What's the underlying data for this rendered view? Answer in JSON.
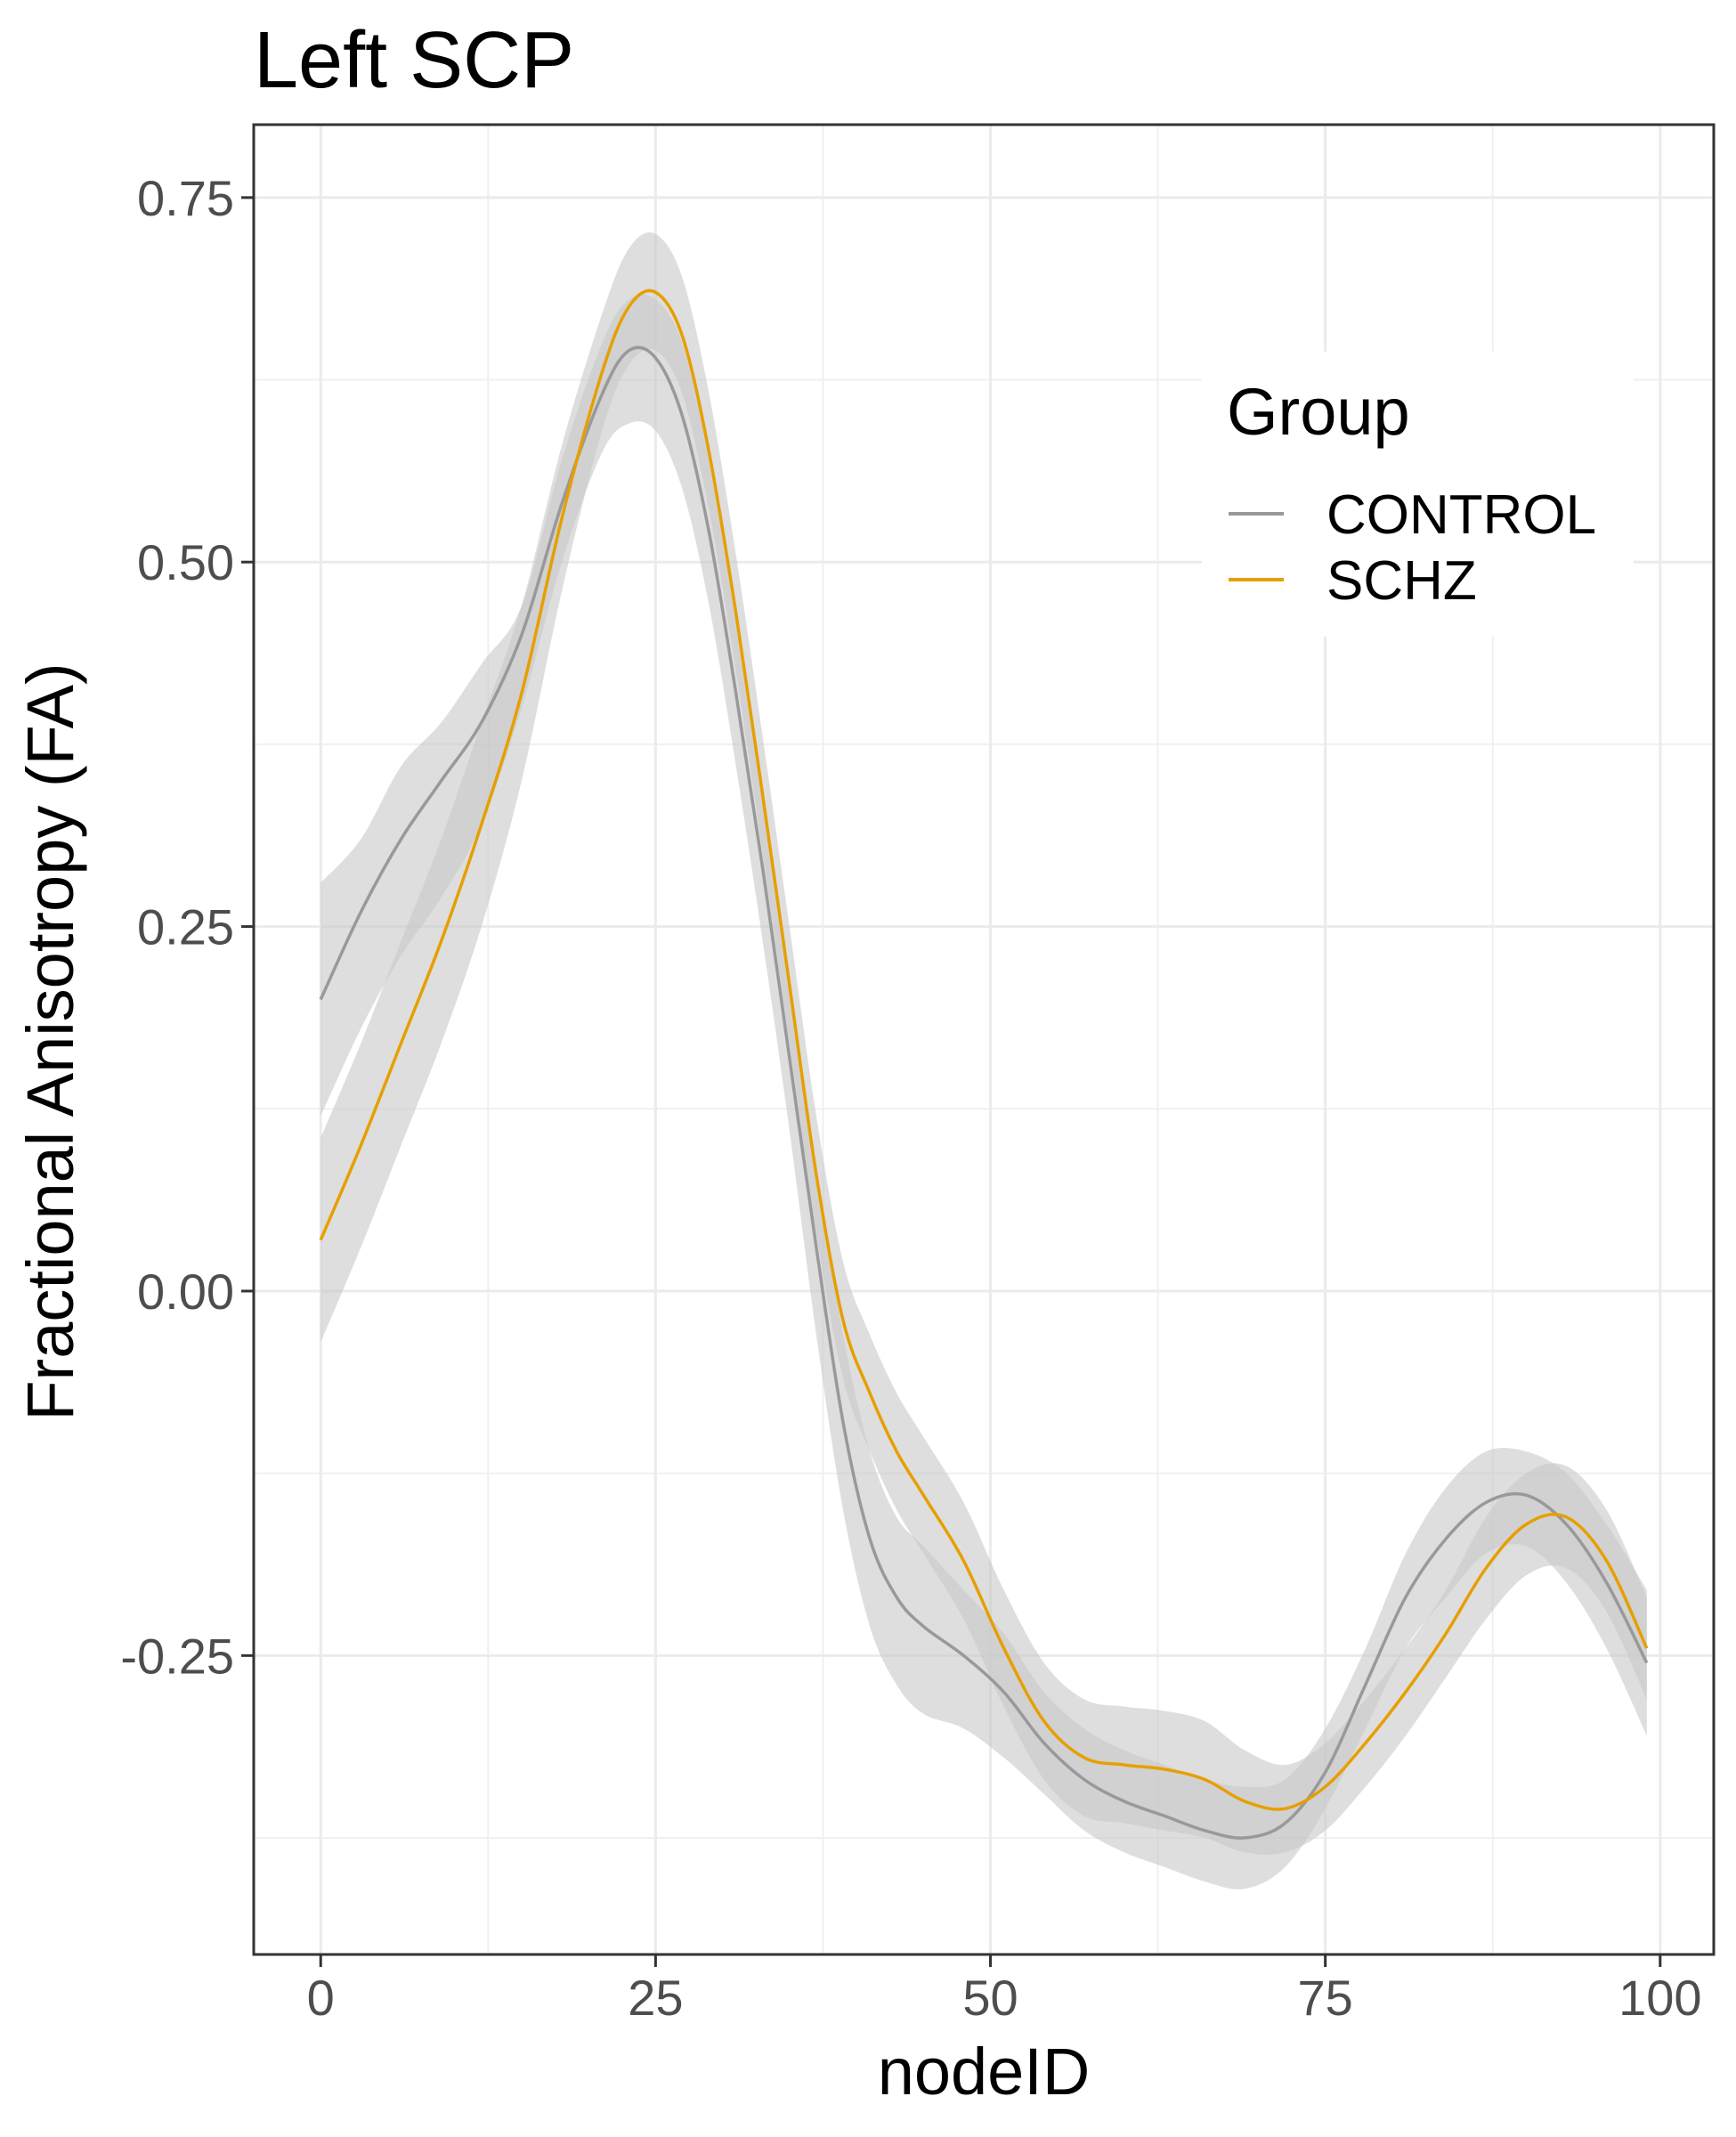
{
  "chart_data": {
    "type": "line",
    "title": "Left SCP",
    "xlabel": "nodeID",
    "ylabel": "Fractional Anisotropy (FA)",
    "xlim": [
      -5,
      104
    ],
    "ylim": [
      -0.455,
      0.8
    ],
    "x_ticks": [
      0,
      25,
      50,
      75,
      100
    ],
    "x_tick_labels": [
      "0",
      "25",
      "50",
      "75",
      "100"
    ],
    "y_ticks": [
      -0.25,
      0.0,
      0.25,
      0.5,
      0.75
    ],
    "y_tick_labels": [
      "-0.25",
      "0.00",
      "0.25",
      "0.50",
      "0.75"
    ],
    "grid": true,
    "legend": {
      "title": "Group",
      "position": "top-right"
    },
    "band_color": "#c8c8c8",
    "series": [
      {
        "name": "CONTROL",
        "color": "#999999",
        "x": [
          0,
          3,
          6,
          9,
          12,
          15,
          18,
          21,
          23,
          25,
          27,
          29,
          31,
          33,
          35,
          37,
          39,
          41,
          43,
          45,
          48,
          51,
          54,
          57,
          60,
          63,
          66,
          69,
          72,
          75,
          78,
          81,
          84,
          87,
          90,
          93,
          96,
          99
        ],
        "y": [
          0.2,
          0.26,
          0.31,
          0.35,
          0.39,
          0.45,
          0.54,
          0.615,
          0.645,
          0.64,
          0.6,
          0.52,
          0.41,
          0.29,
          0.16,
          0.03,
          -0.09,
          -0.17,
          -0.21,
          -0.23,
          -0.25,
          -0.275,
          -0.31,
          -0.335,
          -0.35,
          -0.36,
          -0.37,
          -0.375,
          -0.365,
          -0.33,
          -0.27,
          -0.21,
          -0.17,
          -0.145,
          -0.14,
          -0.16,
          -0.2,
          -0.255
        ],
        "lower": [
          0.12,
          0.18,
          0.23,
          0.27,
          0.32,
          0.4,
          0.5,
          0.575,
          0.595,
          0.59,
          0.55,
          0.47,
          0.36,
          0.24,
          0.11,
          -0.03,
          -0.15,
          -0.23,
          -0.27,
          -0.29,
          -0.3,
          -0.32,
          -0.345,
          -0.37,
          -0.385,
          -0.395,
          -0.405,
          -0.41,
          -0.395,
          -0.355,
          -0.3,
          -0.245,
          -0.21,
          -0.18,
          -0.175,
          -0.2,
          -0.245,
          -0.305
        ],
        "upper": [
          0.28,
          0.31,
          0.36,
          0.39,
          0.43,
          0.47,
          0.57,
          0.65,
          0.68,
          0.68,
          0.65,
          0.57,
          0.46,
          0.34,
          0.21,
          0.085,
          -0.03,
          -0.11,
          -0.155,
          -0.175,
          -0.205,
          -0.235,
          -0.275,
          -0.3,
          -0.315,
          -0.325,
          -0.335,
          -0.34,
          -0.335,
          -0.3,
          -0.245,
          -0.18,
          -0.135,
          -0.11,
          -0.11,
          -0.125,
          -0.16,
          -0.205
        ]
      },
      {
        "name": "SCHZ",
        "color": "#E69F00",
        "x": [
          0,
          3,
          6,
          9,
          12,
          15,
          18,
          21,
          23,
          25,
          27,
          29,
          31,
          33,
          35,
          37,
          39,
          41,
          43,
          45,
          48,
          51,
          54,
          57,
          60,
          63,
          66,
          69,
          72,
          75,
          78,
          81,
          84,
          87,
          90,
          93,
          96,
          99
        ],
        "y": [
          0.035,
          0.1,
          0.17,
          0.24,
          0.32,
          0.41,
          0.53,
          0.63,
          0.675,
          0.685,
          0.655,
          0.575,
          0.465,
          0.34,
          0.21,
          0.08,
          -0.02,
          -0.07,
          -0.11,
          -0.14,
          -0.185,
          -0.245,
          -0.295,
          -0.32,
          -0.325,
          -0.328,
          -0.335,
          -0.35,
          -0.355,
          -0.34,
          -0.31,
          -0.275,
          -0.235,
          -0.19,
          -0.16,
          -0.155,
          -0.185,
          -0.245
        ],
        "lower": [
          -0.035,
          0.03,
          0.1,
          0.17,
          0.25,
          0.35,
          0.48,
          0.59,
          0.635,
          0.645,
          0.615,
          0.535,
          0.425,
          0.3,
          0.17,
          0.04,
          -0.06,
          -0.11,
          -0.15,
          -0.18,
          -0.225,
          -0.285,
          -0.335,
          -0.36,
          -0.365,
          -0.37,
          -0.375,
          -0.385,
          -0.385,
          -0.37,
          -0.34,
          -0.305,
          -0.265,
          -0.225,
          -0.195,
          -0.19,
          -0.22,
          -0.28
        ],
        "upper": [
          0.105,
          0.17,
          0.24,
          0.31,
          0.39,
          0.47,
          0.58,
          0.67,
          0.715,
          0.725,
          0.695,
          0.615,
          0.505,
          0.38,
          0.25,
          0.12,
          0.02,
          -0.03,
          -0.07,
          -0.1,
          -0.145,
          -0.205,
          -0.255,
          -0.28,
          -0.285,
          -0.288,
          -0.295,
          -0.315,
          -0.325,
          -0.31,
          -0.28,
          -0.245,
          -0.205,
          -0.155,
          -0.125,
          -0.12,
          -0.15,
          -0.21
        ]
      }
    ]
  }
}
